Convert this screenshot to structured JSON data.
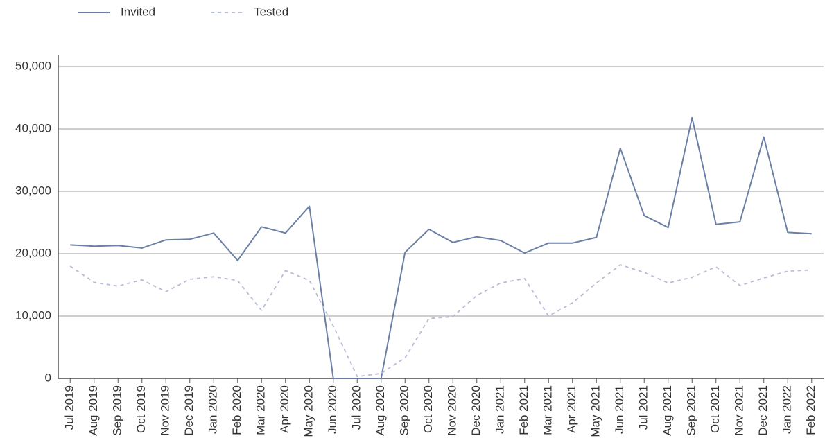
{
  "chart_data": {
    "type": "line",
    "categories": [
      "Jul 2019",
      "Aug 2019",
      "Sep 2019",
      "Oct 2019",
      "Nov 2019",
      "Dec 2019",
      "Jan 2020",
      "Feb 2020",
      "Mar 2020",
      "Apr 2020",
      "May 2020",
      "Jun 2020",
      "Jul 2020",
      "Aug 2020",
      "Sep 2020",
      "Oct 2020",
      "Nov 2020",
      "Dec 2020",
      "Jan 2021",
      "Feb 2021",
      "Mar 2021",
      "Apr 2021",
      "May 2021",
      "Jun 2021",
      "Jul 2021",
      "Aug 2021",
      "Sep 2021",
      "Oct 2021",
      "Nov 2021",
      "Dec 2021",
      "Jan 2022",
      "Feb 2022"
    ],
    "series": [
      {
        "name": "Invited",
        "color": "#6b7fa6",
        "style": "solid",
        "values": [
          21400,
          21200,
          21300,
          20900,
          22200,
          22300,
          23300,
          18900,
          24300,
          23300,
          27600,
          0,
          0,
          0,
          20200,
          23900,
          21800,
          22700,
          22100,
          20100,
          21700,
          21700,
          22600,
          36900,
          26100,
          24200,
          41800,
          24700,
          25100,
          38700,
          23400,
          23200
        ]
      },
      {
        "name": "Tested",
        "color": "#b6bcd6",
        "style": "dashed",
        "values": [
          18000,
          15400,
          14800,
          15800,
          13900,
          15900,
          16300,
          15700,
          10900,
          17300,
          15700,
          8400,
          300,
          800,
          3300,
          9600,
          9900,
          13300,
          15300,
          16000,
          10000,
          12100,
          15300,
          18200,
          17000,
          15300,
          16200,
          17900,
          14900,
          16100,
          17200,
          17400
        ]
      }
    ],
    "ylim": [
      0,
      50000
    ],
    "yticks": [
      0,
      {
        "value": 10000,
        "label": "10,000"
      },
      {
        "value": 20000,
        "label": "20,000"
      },
      {
        "value": 30000,
        "label": "30,000"
      },
      {
        "value": 40000,
        "label": "40,000"
      },
      {
        "value": 50000,
        "label": "50,000"
      }
    ],
    "grid": true,
    "legend": "top-left"
  }
}
